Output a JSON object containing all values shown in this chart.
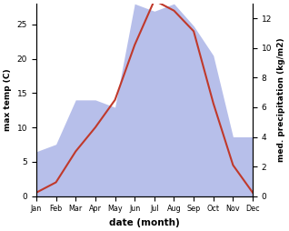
{
  "months": [
    "Jan",
    "Feb",
    "Mar",
    "Apr",
    "May",
    "Jun",
    "Jul",
    "Aug",
    "Sep",
    "Oct",
    "Nov",
    "Dec"
  ],
  "temperature": [
    0.5,
    2.0,
    6.5,
    10.0,
    14.0,
    22.0,
    28.5,
    27.0,
    24.0,
    13.5,
    4.5,
    0.5
  ],
  "precipitation": [
    3.0,
    3.5,
    6.5,
    6.5,
    6.0,
    13.0,
    12.5,
    13.0,
    11.5,
    9.5,
    4.0,
    4.0
  ],
  "temp_color": "#c0392b",
  "precip_color_fill": "#b0b8e8",
  "bg_color": "#ffffff",
  "xlabel": "date (month)",
  "ylabel_left": "max temp (C)",
  "ylabel_right": "med. precipitation (kg/m2)",
  "ylim_left": [
    0,
    28
  ],
  "ylim_right": [
    0,
    13
  ],
  "yticks_left": [
    0,
    5,
    10,
    15,
    20,
    25
  ],
  "yticks_right": [
    0,
    2,
    4,
    6,
    8,
    10,
    12
  ],
  "temp_scale_max": 28,
  "precip_scale_max": 13,
  "figsize": [
    3.18,
    2.54
  ],
  "dpi": 100
}
